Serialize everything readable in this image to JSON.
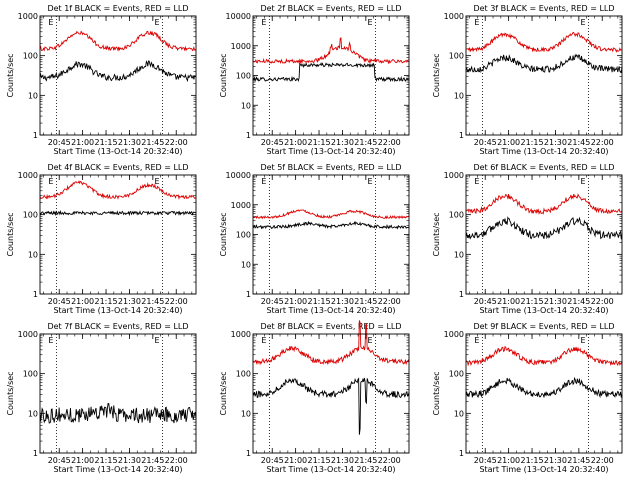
{
  "figure": {
    "xlabel": "Start Time (13-Oct-14 20:32:40)",
    "ylabel": "Counts/sec",
    "x_range_minutes": [
      0,
      100
    ],
    "x_ticks": [
      {
        "t": 12.33,
        "label": "20:45"
      },
      {
        "t": 27.33,
        "label": "21:00"
      },
      {
        "t": 42.33,
        "label": "21:15"
      },
      {
        "t": 57.33,
        "label": "21:30"
      },
      {
        "t": 72.33,
        "label": "21:45"
      },
      {
        "t": 87.33,
        "label": "22:00"
      }
    ],
    "vlines": [
      10.5,
      78.5
    ],
    "marker_text": "E",
    "colors": {
      "events": "#000000",
      "lld": "#dd0000"
    }
  },
  "chart_data": [
    {
      "type": "line",
      "title": "Det 1f BLACK = Events, RED = LLD",
      "ylim": [
        1,
        1000
      ],
      "y_tick_labels": [
        "1",
        "10",
        "100",
        "1000"
      ],
      "series": [
        {
          "name": "Events",
          "baseline": 28,
          "bumps": [
            [
              25,
              2.2
            ],
            [
              70,
              2.2
            ]
          ],
          "noise": 0.08
        },
        {
          "name": "LLD",
          "baseline": 150,
          "bumps": [
            [
              25,
              2.5
            ],
            [
              70,
              2.5
            ]
          ],
          "noise": 0.05
        }
      ]
    },
    {
      "type": "line",
      "title": "Det 2f BLACK = Events, RED = LLD",
      "ylim": [
        1,
        10000
      ],
      "y_tick_labels": [
        "1",
        "10",
        "100",
        "1000",
        "10000"
      ],
      "series": [
        {
          "name": "Events",
          "baseline": 75,
          "step": [
            30,
            78,
            3
          ],
          "noise": 0.06
        },
        {
          "name": "LLD",
          "baseline": 300,
          "bumps": [
            [
              57,
              3
            ]
          ],
          "spikes": [
            [
              50,
              1.6
            ],
            [
              56,
              1.8
            ],
            [
              62,
              1.5
            ]
          ],
          "noise": 0.06
        }
      ]
    },
    {
      "type": "line",
      "title": "Det 3f BLACK = Events, RED = LLD",
      "ylim": [
        1,
        1000
      ],
      "y_tick_labels": [
        "1",
        "10",
        "100",
        "1000"
      ],
      "series": [
        {
          "name": "Events",
          "baseline": 45,
          "bumps": [
            [
              25,
              2
            ],
            [
              70,
              2
            ]
          ],
          "noise": 0.08
        },
        {
          "name": "LLD",
          "baseline": 140,
          "bumps": [
            [
              25,
              2.5
            ],
            [
              70,
              2.5
            ]
          ],
          "noise": 0.05
        }
      ]
    },
    {
      "type": "line",
      "title": "Det 4f BLACK = Events, RED = LLD",
      "ylim": [
        1,
        1000
      ],
      "y_tick_labels": [
        "1",
        "10",
        "100",
        "1000"
      ],
      "series": [
        {
          "name": "Events",
          "baseline": 110,
          "noise": 0.04
        },
        {
          "name": "LLD",
          "baseline": 280,
          "bumps": [
            [
              25,
              2.3
            ],
            [
              70,
              2
            ]
          ],
          "noise": 0.04
        }
      ]
    },
    {
      "type": "line",
      "title": "Det 5f BLACK = Events, RED = LLD",
      "ylim": [
        1,
        10000
      ],
      "y_tick_labels": [
        "1",
        "10",
        "100",
        "1000",
        "10000"
      ],
      "series": [
        {
          "name": "Events",
          "baseline": 180,
          "bumps": [
            [
              35,
              1.3
            ],
            [
              65,
              1.3
            ]
          ],
          "noise": 0.05
        },
        {
          "name": "LLD",
          "baseline": 380,
          "bumps": [
            [
              30,
              1.7
            ],
            [
              65,
              1.6
            ]
          ],
          "noise": 0.04
        }
      ]
    },
    {
      "type": "line",
      "title": "Det 6f BLACK = Events, RED = LLD",
      "ylim": [
        1,
        1000
      ],
      "y_tick_labels": [
        "1",
        "10",
        "100",
        "1000"
      ],
      "series": [
        {
          "name": "Events",
          "baseline": 30,
          "bumps": [
            [
              25,
              2.3
            ],
            [
              70,
              2.3
            ]
          ],
          "noise": 0.1
        },
        {
          "name": "LLD",
          "baseline": 120,
          "bumps": [
            [
              25,
              2.5
            ],
            [
              70,
              2.5
            ]
          ],
          "noise": 0.06
        }
      ]
    },
    {
      "type": "line",
      "title": "Det 7f BLACK = Events, RED = LLD",
      "ylim": [
        1,
        1000
      ],
      "y_tick_labels": [
        "1",
        "10",
        "100",
        "1000"
      ],
      "series": [
        {
          "name": "Events",
          "baseline": 9,
          "bumps": [
            [
              40,
              1.3
            ]
          ],
          "noise": 0.2
        }
      ]
    },
    {
      "type": "line",
      "title": "Det 8f BLACK = Events, RED = LLD",
      "ylim": [
        1,
        1000
      ],
      "y_tick_labels": [
        "1",
        "10",
        "100",
        "1000"
      ],
      "series": [
        {
          "name": "Events",
          "baseline": 30,
          "bumps": [
            [
              25,
              2.3
            ],
            [
              70,
              2.3
            ]
          ],
          "noise": 0.08,
          "dips": [
            [
              68.5,
              0.05
            ],
            [
              72.5,
              0.3
            ]
          ]
        },
        {
          "name": "LLD",
          "baseline": 200,
          "bumps": [
            [
              25,
              2.2
            ],
            [
              70,
              2.2
            ]
          ],
          "noise": 0.06,
          "spikes": [
            [
              68.5,
              5
            ],
            [
              72.5,
              4
            ]
          ]
        }
      ]
    },
    {
      "type": "line",
      "title": "Det 9f BLACK = Events, RED = LLD",
      "ylim": [
        1,
        1000
      ],
      "y_tick_labels": [
        "1",
        "10",
        "100",
        "1000"
      ],
      "series": [
        {
          "name": "Events",
          "baseline": 30,
          "bumps": [
            [
              25,
              2.2
            ],
            [
              70,
              2.2
            ]
          ],
          "noise": 0.08
        },
        {
          "name": "LLD",
          "baseline": 190,
          "bumps": [
            [
              25,
              2.2
            ],
            [
              70,
              2.2
            ]
          ],
          "noise": 0.06
        }
      ]
    }
  ]
}
